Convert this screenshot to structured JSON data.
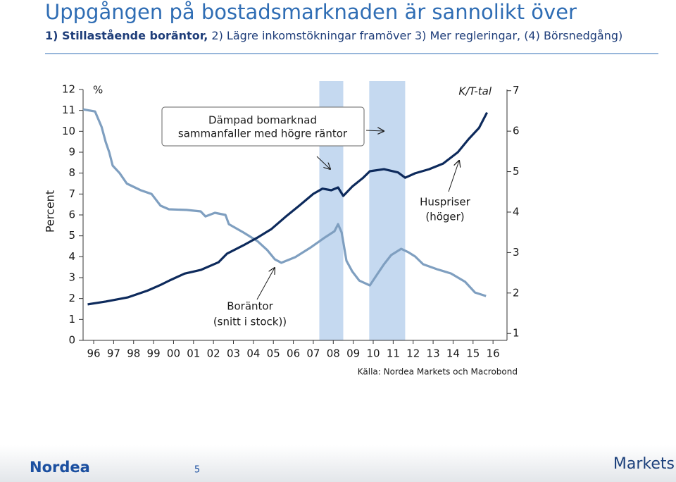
{
  "chart_data": {
    "type": "line",
    "title": "Uppgången på bostadsmarknaden är sannolikt över",
    "subtitle_bold": "1) Stillastående boräntor,",
    "subtitle": " 2) Lägre inkomstökningar framöver 3) Mer regleringar, (4) Börsnedgång)",
    "ylabel": "Percent",
    "yunit": "%",
    "y2unit": "K/T-tal",
    "source": "Källa: Nordea Markets och Macrobond",
    "xlim": [
      1995.47,
      2016.7
    ],
    "xticks": [
      {
        "value": 1996,
        "label": "96"
      },
      {
        "value": 1997,
        "label": "97"
      },
      {
        "value": 1998,
        "label": "98"
      },
      {
        "value": 1999,
        "label": "99"
      },
      {
        "value": 2000,
        "label": "00"
      },
      {
        "value": 2001,
        "label": "01"
      },
      {
        "value": 2002,
        "label": "02"
      },
      {
        "value": 2003,
        "label": "03"
      },
      {
        "value": 2004,
        "label": "04"
      },
      {
        "value": 2005,
        "label": "05"
      },
      {
        "value": 2006,
        "label": "06"
      },
      {
        "value": 2007,
        "label": "07"
      },
      {
        "value": 2008,
        "label": "08"
      },
      {
        "value": 2009,
        "label": "09"
      },
      {
        "value": 2010,
        "label": "10"
      },
      {
        "value": 2011,
        "label": "11"
      },
      {
        "value": 2012,
        "label": "12"
      },
      {
        "value": 2013,
        "label": "13"
      },
      {
        "value": 2014,
        "label": "14"
      },
      {
        "value": 2015,
        "label": "15"
      },
      {
        "value": 2016,
        "label": "16"
      }
    ],
    "ylim": [
      0,
      12
    ],
    "yticks": [
      0,
      1,
      2,
      3,
      4,
      5,
      6,
      7,
      8,
      9,
      10,
      11,
      12
    ],
    "y2lim": [
      0.83,
      7.03
    ],
    "y2ticks": [
      1,
      2,
      3,
      4,
      5,
      6,
      7
    ],
    "shaded_periods": [
      [
        2007.3,
        2008.5
      ],
      [
        2009.8,
        2011.6
      ]
    ],
    "shade_color": "#c5d9f0",
    "series": [
      {
        "color": "#7f9fc0",
        "axis": "y",
        "x": [
          1995.47,
          1996.07,
          1996.4,
          1996.6,
          1996.78,
          1996.95,
          1997.3,
          1997.66,
          1998.36,
          1998.9,
          1999.35,
          1999.77,
          2000.65,
          2001.36,
          2001.6,
          2002.07,
          2002.6,
          2002.77,
          2003.5,
          2004.2,
          2004.7,
          2005.07,
          2005.4,
          2006.1,
          2006.83,
          2007.53,
          2008.06,
          2008.24,
          2008.42,
          2008.66,
          2008.95,
          2009.3,
          2009.83,
          2010.18,
          2010.54,
          2010.9,
          2011.4,
          2011.77,
          2012.1,
          2012.5,
          2013.2,
          2013.9,
          2014.6,
          2015.1,
          2015.65
        ],
        "values": [
          11.05,
          10.95,
          10.2,
          9.5,
          9.0,
          8.36,
          8.0,
          7.5,
          7.18,
          7.0,
          6.44,
          6.27,
          6.24,
          6.17,
          5.93,
          6.1,
          6.0,
          5.56,
          5.16,
          4.75,
          4.31,
          3.88,
          3.71,
          3.98,
          4.42,
          4.89,
          5.22,
          5.56,
          5.16,
          3.81,
          3.3,
          2.86,
          2.63,
          3.13,
          3.64,
          4.08,
          4.38,
          4.21,
          4.01,
          3.64,
          3.4,
          3.2,
          2.8,
          2.29,
          2.12
        ]
      },
      {
        "color": "#0d2a5c",
        "axis": "y2",
        "x": [
          1995.7,
          1996.6,
          1997.7,
          1998.7,
          1999.35,
          1999.8,
          2000.55,
          2001.36,
          2002.25,
          2002.67,
          2003.5,
          2004.2,
          2004.9,
          2005.6,
          2006.3,
          2007.0,
          2007.46,
          2007.9,
          2008.24,
          2008.5,
          2008.95,
          2009.5,
          2009.83,
          2010.54,
          2011.24,
          2011.6,
          2012.1,
          2012.8,
          2013.5,
          2014.24,
          2014.77,
          2015.3,
          2015.7
        ],
        "values": [
          1.72,
          1.79,
          1.89,
          2.06,
          2.2,
          2.31,
          2.48,
          2.57,
          2.76,
          2.97,
          3.18,
          3.37,
          3.58,
          3.88,
          4.16,
          4.45,
          4.58,
          4.54,
          4.61,
          4.4,
          4.63,
          4.85,
          5.01,
          5.06,
          4.98,
          4.85,
          4.96,
          5.06,
          5.2,
          5.48,
          5.8,
          6.08,
          6.46
        ]
      }
    ],
    "annotations": [
      {
        "lines": [
          "Dämpad bomarknad",
          "sammanfaller med högre räntor"
        ]
      },
      {
        "lines": [
          "Boräntor",
          "(snitt i stock))"
        ]
      },
      {
        "lines": [
          "Huspriser",
          "(höger)"
        ]
      }
    ]
  },
  "footer": {
    "logo": "Nordea",
    "page": "5",
    "brand": "Markets"
  }
}
